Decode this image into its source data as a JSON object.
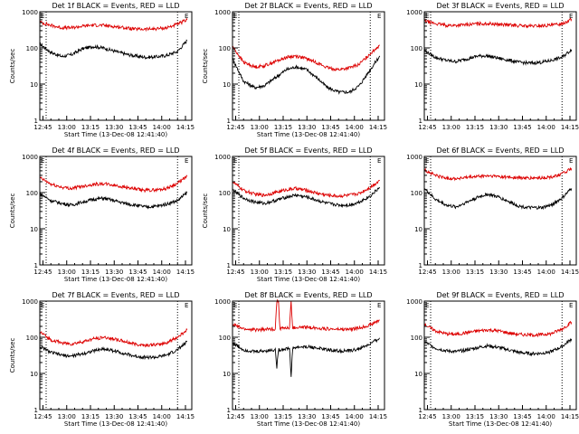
{
  "chart_data": [
    {
      "type": "line",
      "title": "Det 1f BLACK = Events, RED = LLD",
      "xlabel": "Start Time (13-Dec-08 12:41:40)",
      "ylabel": "Counts/sec",
      "x_tick_labels": [
        "12:45",
        "13:00",
        "13:15",
        "13:30",
        "13:45",
        "14:00",
        "14:15"
      ],
      "x_ticks": [
        45,
        60,
        75,
        90,
        105,
        120,
        135
      ],
      "xlim": [
        43,
        139
      ],
      "y_scale": "log",
      "ylim": [
        1,
        1000
      ],
      "y_tick_labels": [
        "1",
        "10",
        "100",
        "1000"
      ],
      "vlines": [
        47,
        130
      ],
      "corner_marks": [
        "E",
        "E"
      ],
      "series": [
        {
          "name": "Events",
          "color": "#000000",
          "x": [
            43,
            50,
            57,
            63,
            70,
            77,
            83,
            90,
            97,
            103,
            110,
            117,
            123,
            130,
            136
          ],
          "values": [
            130,
            75,
            58,
            65,
            95,
            110,
            100,
            82,
            68,
            60,
            55,
            57,
            62,
            80,
            160
          ]
        },
        {
          "name": "LLD",
          "color": "#dd0000",
          "x": [
            43,
            50,
            57,
            63,
            70,
            77,
            83,
            90,
            97,
            103,
            110,
            117,
            123,
            130,
            136
          ],
          "values": [
            520,
            420,
            360,
            360,
            400,
            430,
            420,
            390,
            360,
            330,
            330,
            340,
            360,
            450,
            600
          ]
        }
      ]
    },
    {
      "type": "line",
      "title": "Det 2f BLACK = Events, RED = LLD",
      "xlabel": "Start Time (13-Dec-08 12:41:40)",
      "ylabel": "Counts/sec",
      "x_tick_labels": [
        "12:45",
        "13:00",
        "13:15",
        "13:30",
        "13:45",
        "14:00",
        "14:15"
      ],
      "x_ticks": [
        45,
        60,
        75,
        90,
        105,
        120,
        135
      ],
      "xlim": [
        43,
        139
      ],
      "y_scale": "log",
      "ylim": [
        1,
        1000
      ],
      "y_tick_labels": [
        "1",
        "10",
        "100",
        "1000"
      ],
      "vlines": [
        47,
        130
      ],
      "corner_marks": [
        "E",
        "E"
      ],
      "series": [
        {
          "name": "Events",
          "color": "#000000",
          "x": [
            43,
            50,
            57,
            63,
            70,
            77,
            83,
            90,
            97,
            103,
            110,
            117,
            123,
            130,
            136
          ],
          "values": [
            50,
            12,
            8,
            9,
            15,
            25,
            30,
            25,
            14,
            8,
            6,
            6,
            9,
            25,
            60
          ]
        },
        {
          "name": "LLD",
          "color": "#dd0000",
          "x": [
            43,
            50,
            57,
            63,
            70,
            77,
            83,
            90,
            97,
            103,
            110,
            117,
            123,
            130,
            136
          ],
          "values": [
            110,
            40,
            30,
            32,
            42,
            55,
            60,
            50,
            38,
            28,
            25,
            28,
            35,
            70,
            120
          ]
        }
      ]
    },
    {
      "type": "line",
      "title": "Det 3f BLACK = Events, RED = LLD",
      "xlabel": "",
      "ylabel": "",
      "x_tick_labels": [
        "12:45",
        "13:00",
        "13:15",
        "13:30",
        "13:45",
        "14:00",
        "14:15"
      ],
      "x_ticks": [
        45,
        60,
        75,
        90,
        105,
        120,
        135
      ],
      "xlim": [
        43,
        139
      ],
      "y_scale": "log",
      "ylim": [
        1,
        1000
      ],
      "y_tick_labels": [
        "1",
        "10",
        "100",
        "1000"
      ],
      "vlines": [
        47,
        130
      ],
      "corner_marks": [
        "E",
        "E"
      ],
      "series": [
        {
          "name": "Events",
          "color": "#000000",
          "x": [
            43,
            50,
            57,
            63,
            70,
            77,
            83,
            90,
            97,
            103,
            110,
            117,
            123,
            130,
            136
          ],
          "values": [
            85,
            55,
            45,
            42,
            50,
            60,
            60,
            52,
            45,
            40,
            38,
            40,
            45,
            55,
            90
          ]
        },
        {
          "name": "LLD",
          "color": "#dd0000",
          "x": [
            43,
            50,
            57,
            63,
            70,
            77,
            83,
            90,
            97,
            103,
            110,
            117,
            123,
            130,
            136
          ],
          "values": [
            560,
            470,
            420,
            420,
            440,
            470,
            470,
            450,
            430,
            410,
            400,
            410,
            420,
            470,
            620
          ]
        }
      ]
    },
    {
      "type": "line",
      "title": "Det 4f BLACK = Events, RED = LLD",
      "xlabel": "Start Time (13-Dec-08 12:41:40)",
      "ylabel": "Counts/sec",
      "x_tick_labels": [
        "12:45",
        "13:00",
        "13:15",
        "13:30",
        "13:45",
        "14:00",
        "14:15"
      ],
      "x_ticks": [
        45,
        60,
        75,
        90,
        105,
        120,
        135
      ],
      "xlim": [
        43,
        139
      ],
      "y_scale": "log",
      "ylim": [
        1,
        1000
      ],
      "y_tick_labels": [
        "1",
        "10",
        "100",
        "1000"
      ],
      "vlines": [
        47,
        130
      ],
      "corner_marks": [
        "E",
        "E"
      ],
      "series": [
        {
          "name": "Events",
          "color": "#000000",
          "x": [
            43,
            50,
            57,
            63,
            70,
            77,
            83,
            90,
            97,
            103,
            110,
            117,
            123,
            130,
            136
          ],
          "values": [
            95,
            60,
            50,
            45,
            55,
            65,
            70,
            60,
            50,
            45,
            40,
            42,
            48,
            60,
            100
          ]
        },
        {
          "name": "LLD",
          "color": "#dd0000",
          "x": [
            43,
            50,
            57,
            63,
            70,
            77,
            83,
            90,
            97,
            103,
            110,
            117,
            123,
            130,
            136
          ],
          "values": [
            260,
            170,
            140,
            130,
            150,
            170,
            175,
            160,
            140,
            125,
            115,
            120,
            130,
            180,
            280
          ]
        }
      ]
    },
    {
      "type": "line",
      "title": "Det 5f BLACK = Events, RED = LLD",
      "xlabel": "Start Time (13-Dec-08 12:41:40)",
      "ylabel": "Counts/sec",
      "x_tick_labels": [
        "12:45",
        "13:00",
        "13:15",
        "13:30",
        "13:45",
        "14:00",
        "14:15"
      ],
      "x_ticks": [
        45,
        60,
        75,
        90,
        105,
        120,
        135
      ],
      "xlim": [
        43,
        139
      ],
      "y_scale": "log",
      "ylim": [
        1,
        1000
      ],
      "y_tick_labels": [
        "1",
        "10",
        "100",
        "1000"
      ],
      "vlines": [
        47,
        130
      ],
      "corner_marks": [
        "E",
        "E"
      ],
      "series": [
        {
          "name": "Events",
          "color": "#000000",
          "x": [
            43,
            50,
            57,
            63,
            70,
            77,
            83,
            90,
            97,
            103,
            110,
            117,
            123,
            130,
            136
          ],
          "values": [
            120,
            70,
            55,
            50,
            60,
            75,
            85,
            75,
            60,
            50,
            45,
            45,
            55,
            80,
            140
          ]
        },
        {
          "name": "LLD",
          "color": "#dd0000",
          "x": [
            43,
            50,
            57,
            63,
            70,
            77,
            83,
            90,
            97,
            103,
            110,
            117,
            123,
            130,
            136
          ],
          "values": [
            200,
            115,
            90,
            85,
            100,
            120,
            130,
            115,
            95,
            85,
            80,
            85,
            95,
            140,
            220
          ]
        }
      ]
    },
    {
      "type": "line",
      "title": "Det 6f BLACK = Events, RED = LLD",
      "xlabel": "",
      "ylabel": "",
      "x_tick_labels": [
        "12:45",
        "13:00",
        "13:15",
        "13:30",
        "13:45",
        "14:00",
        "14:15"
      ],
      "x_ticks": [
        45,
        60,
        75,
        90,
        105,
        120,
        135
      ],
      "xlim": [
        43,
        139
      ],
      "y_scale": "log",
      "ylim": [
        1,
        1000
      ],
      "y_tick_labels": [
        "1",
        "10",
        "100",
        "1000"
      ],
      "vlines": [
        47,
        130
      ],
      "corner_marks": [
        "E",
        "E"
      ],
      "series": [
        {
          "name": "Events",
          "color": "#000000",
          "x": [
            43,
            50,
            57,
            63,
            70,
            77,
            83,
            90,
            97,
            103,
            110,
            117,
            123,
            130,
            136
          ],
          "values": [
            130,
            65,
            45,
            40,
            55,
            75,
            90,
            75,
            55,
            42,
            38,
            38,
            45,
            70,
            130
          ]
        },
        {
          "name": "LLD",
          "color": "#dd0000",
          "x": [
            43,
            50,
            57,
            63,
            70,
            77,
            83,
            90,
            97,
            103,
            110,
            117,
            123,
            130,
            136
          ],
          "values": [
            420,
            300,
            250,
            245,
            260,
            280,
            290,
            280,
            265,
            255,
            250,
            255,
            265,
            330,
            460
          ]
        }
      ]
    },
    {
      "type": "line",
      "title": "Det 7f BLACK = Events, RED = LLD",
      "xlabel": "Start Time (13-Dec-08 12:41:40)",
      "ylabel": "Counts/sec",
      "x_tick_labels": [
        "12:45",
        "13:00",
        "13:15",
        "13:30",
        "13:45",
        "14:00",
        "14:15"
      ],
      "x_ticks": [
        45,
        60,
        75,
        90,
        105,
        120,
        135
      ],
      "xlim": [
        43,
        139
      ],
      "y_scale": "log",
      "ylim": [
        1,
        1000
      ],
      "y_tick_labels": [
        "1",
        "10",
        "100",
        "1000"
      ],
      "vlines": [
        47,
        130
      ],
      "corner_marks": [
        "E",
        "E"
      ],
      "series": [
        {
          "name": "Events",
          "color": "#000000",
          "x": [
            43,
            50,
            57,
            63,
            70,
            77,
            83,
            90,
            97,
            103,
            110,
            117,
            123,
            130,
            136
          ],
          "values": [
            55,
            38,
            32,
            30,
            35,
            42,
            48,
            42,
            35,
            30,
            28,
            28,
            32,
            45,
            75
          ]
        },
        {
          "name": "LLD",
          "color": "#dd0000",
          "x": [
            43,
            50,
            57,
            63,
            70,
            77,
            83,
            90,
            97,
            103,
            110,
            117,
            123,
            130,
            136
          ],
          "values": [
            140,
            85,
            70,
            65,
            75,
            90,
            100,
            90,
            75,
            65,
            60,
            62,
            70,
            100,
            160
          ]
        }
      ]
    },
    {
      "type": "line",
      "title": "Det 8f BLACK = Events, RED = LLD",
      "xlabel": "Start Time (13-Dec-08 12:41:40)",
      "ylabel": "",
      "x_tick_labels": [
        "12:45",
        "13:00",
        "13:15",
        "13:30",
        "13:45",
        "14:00",
        "14:15"
      ],
      "x_ticks": [
        45,
        60,
        75,
        90,
        105,
        120,
        135
      ],
      "xlim": [
        43,
        139
      ],
      "y_scale": "log",
      "ylim": [
        1,
        1000
      ],
      "y_tick_labels": [
        "1",
        "10",
        "100",
        "1000"
      ],
      "vlines": [
        47,
        130
      ],
      "corner_marks": [
        "E",
        "E"
      ],
      "series": [
        {
          "name": "Events",
          "color": "#000000",
          "x": [
            43,
            50,
            57,
            63,
            70,
            71,
            72,
            73,
            77,
            79,
            80,
            81,
            83,
            90,
            97,
            103,
            110,
            117,
            123,
            130,
            136
          ],
          "values": [
            70,
            45,
            40,
            42,
            45,
            15,
            45,
            45,
            48,
            50,
            8,
            50,
            52,
            55,
            50,
            45,
            42,
            42,
            48,
            65,
            95
          ]
        },
        {
          "name": "LLD",
          "color": "#dd0000",
          "x": [
            43,
            50,
            57,
            63,
            70,
            71,
            72,
            73,
            77,
            79,
            80,
            81,
            83,
            90,
            97,
            103,
            110,
            117,
            123,
            130,
            136
          ],
          "values": [
            230,
            170,
            160,
            165,
            170,
            1000,
            1000,
            175,
            180,
            180,
            1000,
            180,
            185,
            190,
            180,
            170,
            165,
            165,
            180,
            220,
            300
          ]
        }
      ]
    },
    {
      "type": "line",
      "title": "Det 9f BLACK = Events, RED = LLD",
      "xlabel": "Start Time (13-Dec-08 12:41:40)",
      "ylabel": "",
      "x_tick_labels": [
        "12:45",
        "13:00",
        "13:15",
        "13:30",
        "13:45",
        "14:00",
        "14:15"
      ],
      "x_ticks": [
        45,
        60,
        75,
        90,
        105,
        120,
        135
      ],
      "xlim": [
        43,
        139
      ],
      "y_scale": "log",
      "ylim": [
        1,
        1000
      ],
      "y_tick_labels": [
        "1",
        "10",
        "100",
        "1000"
      ],
      "vlines": [
        47,
        130
      ],
      "corner_marks": [
        "E",
        "E"
      ],
      "series": [
        {
          "name": "Events",
          "color": "#000000",
          "x": [
            43,
            50,
            57,
            63,
            70,
            77,
            83,
            90,
            97,
            103,
            110,
            117,
            123,
            130,
            136
          ],
          "values": [
            75,
            50,
            42,
            40,
            45,
            52,
            58,
            52,
            44,
            38,
            35,
            36,
            40,
            55,
            90
          ]
        },
        {
          "name": "LLD",
          "color": "#dd0000",
          "x": [
            43,
            50,
            57,
            63,
            70,
            77,
            83,
            90,
            97,
            103,
            110,
            117,
            123,
            130,
            136
          ],
          "values": [
            230,
            150,
            125,
            120,
            135,
            150,
            160,
            150,
            130,
            120,
            115,
            118,
            125,
            170,
            260
          ]
        }
      ]
    }
  ]
}
